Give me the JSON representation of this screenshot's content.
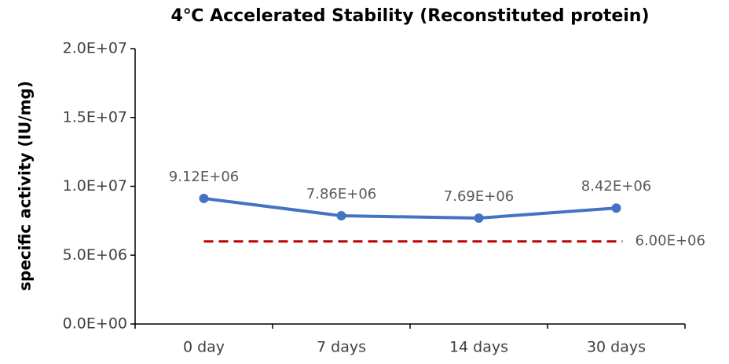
{
  "chart_data": {
    "type": "line",
    "title": "4℃ Accelerated  Stability (Reconstituted protein)",
    "y_label": "specific activity (IU/mg)",
    "categories": [
      "0 day",
      "7 days",
      "14 days",
      "30 days"
    ],
    "series": [
      {
        "color": "#4472c4",
        "values": [
          9120000,
          7860000,
          7690000,
          8420000
        ],
        "value_labels": [
          "9.12E+06",
          "7.86E+06",
          "7.69E+06",
          "8.42E+06"
        ]
      }
    ],
    "reference_line": {
      "value": 6000000,
      "label": "6.00E+06",
      "color": "#c00000"
    },
    "ylim": [
      0,
      20000000
    ],
    "yticks": [
      {
        "value": 0,
        "label": "0.0E+00"
      },
      {
        "value": 5000000,
        "label": "5.0E+06"
      },
      {
        "value": 10000000,
        "label": "1.0E+07"
      },
      {
        "value": 15000000,
        "label": "1.5E+07"
      },
      {
        "value": 20000000,
        "label": "2.0E+07"
      }
    ]
  }
}
